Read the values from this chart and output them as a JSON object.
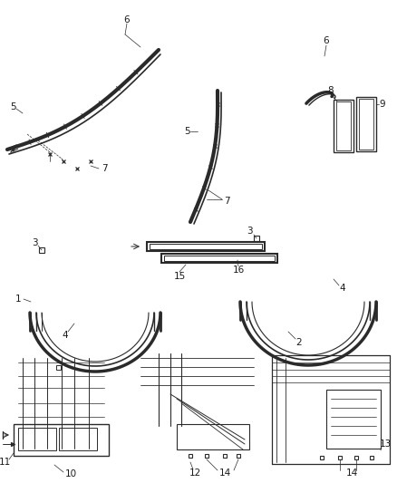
{
  "bg_color": "#ffffff",
  "line_color": "#2a2a2a",
  "label_color": "#1a1a1a",
  "lfs": 7.5,
  "fig_width": 4.38,
  "fig_height": 5.33,
  "dpi": 100
}
